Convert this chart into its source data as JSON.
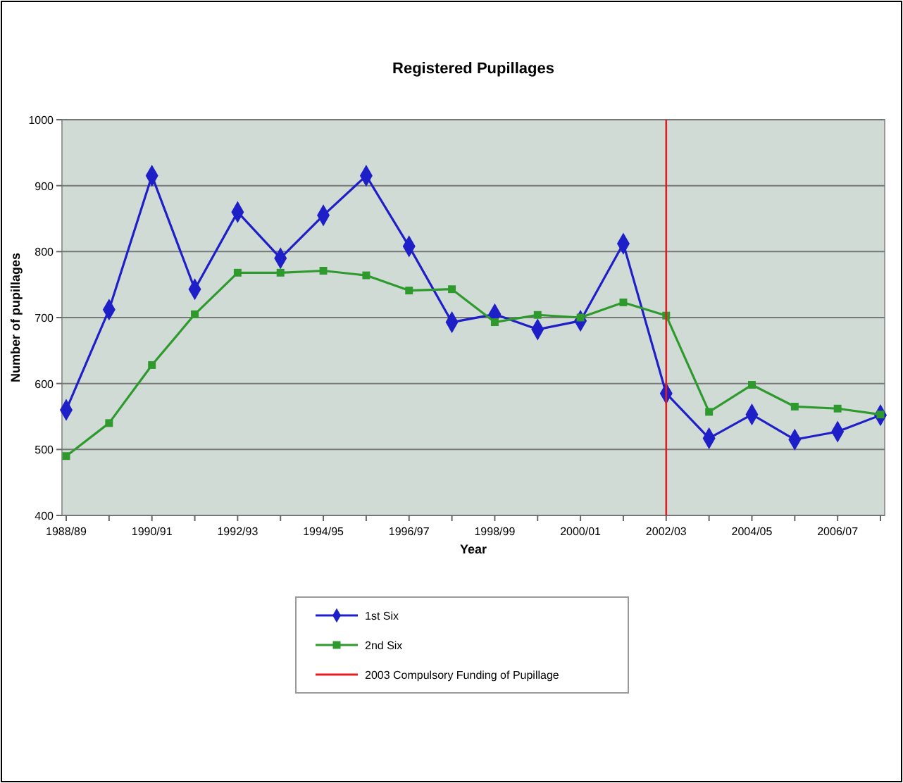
{
  "chart_data": {
    "type": "line",
    "title": "Registered Pupillages",
    "xlabel": "Year",
    "ylabel": "Number of pupillages",
    "categories": [
      "1988/89",
      null,
      "1990/91",
      null,
      "1992/93",
      null,
      "1994/95",
      null,
      "1996/97",
      null,
      "1998/99",
      null,
      "2000/01",
      null,
      "2002/03",
      null,
      "2004/05",
      null,
      "2006/07",
      null
    ],
    "series": [
      {
        "name": "1st Six",
        "color": "#1f1fc8",
        "marker": "diamond",
        "values": [
          560,
          712,
          915,
          743,
          860,
          790,
          855,
          915,
          808,
          693,
          705,
          682,
          695,
          812,
          585,
          517,
          553,
          515,
          527,
          552
        ]
      },
      {
        "name": "2nd Six",
        "color": "#2e9a2e",
        "marker": "square",
        "values": [
          490,
          540,
          628,
          705,
          768,
          768,
          771,
          764,
          741,
          743,
          693,
          704,
          700,
          723,
          703,
          557,
          598,
          565,
          562,
          553
        ]
      }
    ],
    "ref_lines": [
      {
        "axis": "x",
        "value": "2002/03",
        "label": "2003 Compulsory Funding of Pupillage",
        "color": "#e02020"
      }
    ],
    "ylim": [
      400,
      1000
    ],
    "yticks": [
      400,
      500,
      600,
      700,
      800,
      900,
      1000
    ],
    "grid": "y",
    "legend": "bottom"
  }
}
